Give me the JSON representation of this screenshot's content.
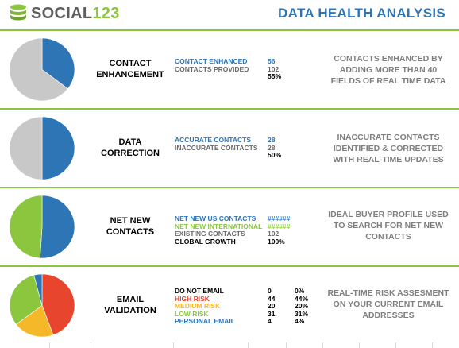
{
  "header": {
    "logo_social": "SOCIAL",
    "logo_num": "123",
    "title": "DATA HEALTH ANALYSIS"
  },
  "colors": {
    "accent_green": "#8cc63f",
    "accent_blue": "#2e75b6",
    "pie_grey": "#c8c8c8",
    "risk_red": "#e8452e",
    "risk_orange": "#f5b829",
    "risk_green": "#8cc63f",
    "risk_blue": "#2e75b6"
  },
  "sections": [
    {
      "label_lines": [
        "CONTACT",
        "ENHANCEMENT"
      ],
      "metrics": [
        {
          "label": "CONTACT ENHANCED",
          "value": "56",
          "color": "#2e75b6"
        },
        {
          "label": "CONTACTS PROVIDED",
          "value": "102",
          "color": "#6a6a6a"
        }
      ],
      "result": "55%",
      "description_lines": [
        "CONTACTS ENHANCED BY",
        "ADDING MORE THAN 40",
        "FIELDS OF REAL TIME DATA"
      ],
      "pie": [
        {
          "name": "Enhanced",
          "value": 56,
          "color": "#2e75b6"
        },
        {
          "name": "Provided",
          "value": 102,
          "color": "#c8c8c8"
        }
      ]
    },
    {
      "label_lines": [
        "DATA",
        "CORRECTION"
      ],
      "metrics": [
        {
          "label": "ACCURATE CONTACTS",
          "value": "28",
          "color": "#2e75b6"
        },
        {
          "label": "INACCURATE CONTACTS",
          "value": "28",
          "color": "#6a6a6a"
        }
      ],
      "result": "50%",
      "description_lines": [
        "INACCURATE CONTACTS",
        "IDENTIFIED & CORRECTED",
        "WITH REAL-TIME UPDATES"
      ],
      "pie": [
        {
          "name": "Accurate",
          "value": 28,
          "color": "#2e75b6"
        },
        {
          "name": "Inaccurate",
          "value": 28,
          "color": "#c8c8c8"
        }
      ]
    },
    {
      "label_lines": [
        "NET NEW",
        "CONTACTS"
      ],
      "metrics": [
        {
          "label": "NET NEW US CONTACTS",
          "value": "######",
          "color": "#2e75b6"
        },
        {
          "label": "NET NEW INTERNATIONAL",
          "value": "######",
          "color": "#8cc63f"
        },
        {
          "label": "EXISTING CONTACTS",
          "value": "102",
          "color": "#6a6a6a"
        },
        {
          "label": "GLOBAL GROWTH",
          "value": "100%",
          "color": "#000000"
        }
      ],
      "result": "",
      "description_lines": [
        "IDEAL BUYER PROFILE USED",
        "TO SEARCH FOR NET NEW",
        "CONTACTS"
      ],
      "pie": [
        {
          "name": "US",
          "value": 51,
          "color": "#2e75b6"
        },
        {
          "name": "International",
          "value": 49,
          "color": "#8cc63f"
        }
      ]
    },
    {
      "label_lines": [
        "EMAIL",
        "VALIDATION"
      ],
      "metrics": [
        {
          "label": "DO NOT EMAIL",
          "value": "0",
          "pct": "0%",
          "color": "#000000"
        },
        {
          "label": "HIGH RISK",
          "value": "44",
          "pct": "44%",
          "color": "#e8452e"
        },
        {
          "label": "MEDIUM RISK",
          "value": "20",
          "pct": "20%",
          "color": "#f5b829"
        },
        {
          "label": "LOW RISK",
          "value": "31",
          "pct": "31%",
          "color": "#8cc63f"
        },
        {
          "label": "PERSONAL EMAIL",
          "value": "4",
          "pct": "4%",
          "color": "#2e75b6"
        }
      ],
      "result": "",
      "description_lines": [
        "REAL-TIME RISK ASSESMENT",
        "ON YOUR CURRENT EMAIL",
        "ADDRESSES"
      ],
      "pie": [
        {
          "name": "High risk",
          "value": 44,
          "color": "#e8452e"
        },
        {
          "name": "Medium risk",
          "value": 20,
          "color": "#f5b829"
        },
        {
          "name": "Low risk",
          "value": 31,
          "color": "#8cc63f"
        },
        {
          "name": "Personal email",
          "value": 4,
          "color": "#2e75b6"
        }
      ]
    }
  ]
}
